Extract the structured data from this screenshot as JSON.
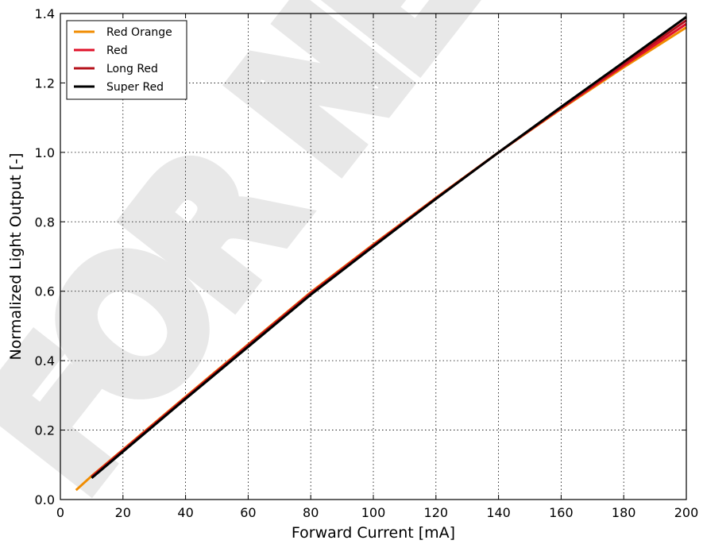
{
  "chart_data": {
    "type": "line",
    "title": "",
    "xlabel": "Forward Current [mA]",
    "ylabel": "Normalized Light Output [-]",
    "xlim": [
      0,
      200
    ],
    "ylim": [
      0.0,
      1.4
    ],
    "xticks": [
      0,
      20,
      40,
      60,
      80,
      100,
      120,
      140,
      160,
      180,
      200
    ],
    "yticks": [
      0.0,
      0.2,
      0.4,
      0.6,
      0.8,
      1.0,
      1.2,
      1.4
    ],
    "xtick_labels": [
      "0",
      "20",
      "40",
      "60",
      "80",
      "100",
      "120",
      "140",
      "160",
      "180",
      "200"
    ],
    "ytick_labels": [
      "0.0",
      "0.2",
      "0.4",
      "0.6",
      "0.8",
      "1.0",
      "1.2",
      "1.4"
    ],
    "grid": true,
    "legend_position": "top-left",
    "series": [
      {
        "name": "Red Orange",
        "color": "#f08c00",
        "x": [
          5,
          10,
          20,
          40,
          60,
          80,
          100,
          120,
          140,
          160,
          180,
          200
        ],
        "y": [
          0.027,
          0.068,
          0.144,
          0.296,
          0.447,
          0.597,
          0.735,
          0.869,
          1.0,
          1.125,
          1.245,
          1.36
        ]
      },
      {
        "name": "Red",
        "color": "#e0122a",
        "x": [
          10,
          20,
          40,
          60,
          80,
          100,
          120,
          140,
          160,
          180,
          200
        ],
        "y": [
          0.066,
          0.142,
          0.294,
          0.445,
          0.595,
          0.733,
          0.868,
          1.0,
          1.127,
          1.25,
          1.37
        ]
      },
      {
        "name": "Long Red",
        "color": "#b5121b",
        "x": [
          10,
          20,
          40,
          60,
          80,
          100,
          120,
          140,
          160,
          180,
          200
        ],
        "y": [
          0.064,
          0.14,
          0.292,
          0.443,
          0.593,
          0.731,
          0.867,
          1.0,
          1.129,
          1.255,
          1.38
        ]
      },
      {
        "name": "Super Red",
        "color": "#000000",
        "x": [
          10,
          20,
          40,
          60,
          80,
          100,
          120,
          140,
          160,
          180,
          200
        ],
        "y": [
          0.062,
          0.138,
          0.29,
          0.44,
          0.59,
          0.729,
          0.866,
          1.0,
          1.131,
          1.26,
          1.39
        ]
      }
    ]
  }
}
